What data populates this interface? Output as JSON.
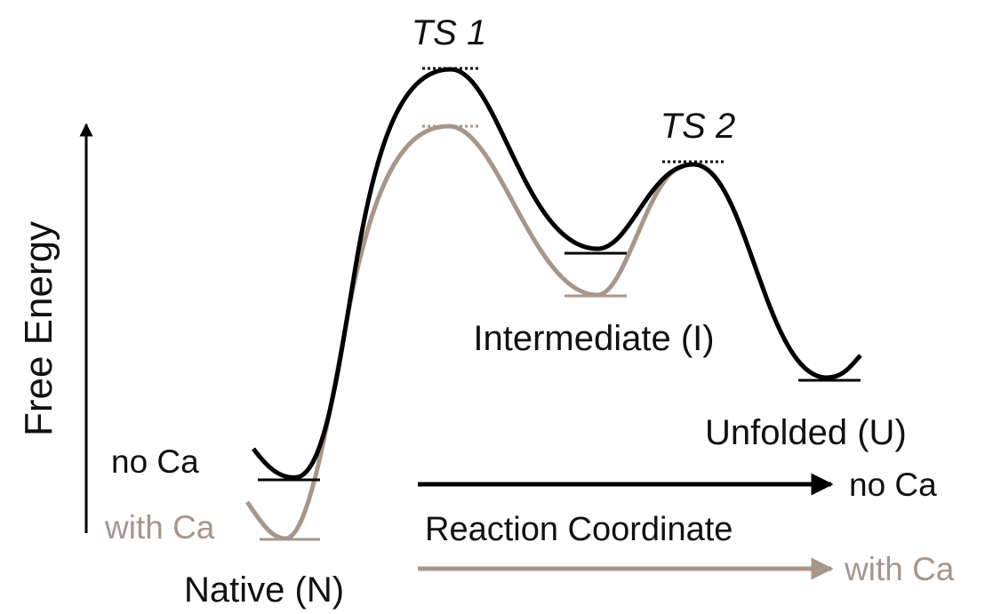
{
  "labels": {
    "ts1": "TS 1",
    "ts2": "TS 2",
    "y_axis": "Free Energy",
    "no_ca_left": "no Ca",
    "with_ca_left": "with Ca",
    "native": "Native (N)",
    "intermediate": "Intermediate (I)",
    "unfolded": "Unfolded (U)",
    "x_axis": "Reaction Coordinate",
    "no_ca_right": "no Ca",
    "with_ca_right": "with Ca"
  }
}
